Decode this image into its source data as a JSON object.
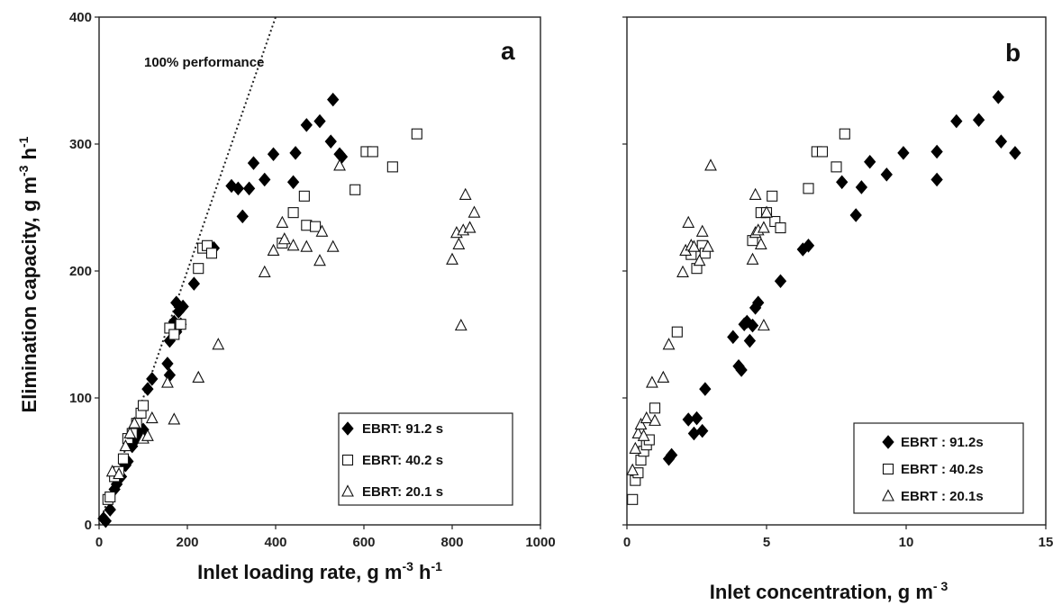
{
  "ylabel": "Elimination capacity, g m",
  "ylabel_sup1": "-3",
  "ylabel_mid": " h",
  "ylabel_sup2": "-1",
  "chart_data": [
    {
      "type": "scatter",
      "panel_letter": "a",
      "xlabel": "Inlet loading rate, g m",
      "xlabel_sup1": "-3",
      "xlabel_mid": " h",
      "xlabel_sup2": "-1",
      "xlim": [
        0,
        1000
      ],
      "ylim": [
        0,
        400
      ],
      "xticks": [
        "0",
        "200",
        "400",
        "600",
        "800",
        "1000"
      ],
      "xtick_values": [
        0,
        200,
        400,
        600,
        800,
        1000
      ],
      "yticks": [
        "0",
        "100",
        "200",
        "300",
        "400"
      ],
      "ytick_values": [
        0,
        100,
        200,
        300,
        400
      ],
      "annotation": "100% performance",
      "reference_line": {
        "x": [
          0,
          400
        ],
        "y": [
          0,
          400
        ]
      },
      "legend_position": "bottom-right",
      "series": [
        {
          "name": "EBRT: 91.2 s",
          "marker": "diamond-filled",
          "points": [
            [
              10,
              5
            ],
            [
              15,
              3
            ],
            [
              25,
              12
            ],
            [
              35,
              28
            ],
            [
              40,
              32
            ],
            [
              50,
              38
            ],
            [
              60,
              47
            ],
            [
              65,
              50
            ],
            [
              75,
              62
            ],
            [
              85,
              68
            ],
            [
              95,
              72
            ],
            [
              100,
              75
            ],
            [
              110,
              107
            ],
            [
              120,
              115
            ],
            [
              155,
              127
            ],
            [
              160,
              118
            ],
            [
              160,
              145
            ],
            [
              170,
              160
            ],
            [
              175,
              175
            ],
            [
              180,
              168
            ],
            [
              185,
              158
            ],
            [
              190,
              172
            ],
            [
              175,
              152
            ],
            [
              215,
              190
            ],
            [
              260,
              218
            ],
            [
              300,
              267
            ],
            [
              315,
              265
            ],
            [
              325,
              243
            ],
            [
              340,
              265
            ],
            [
              350,
              285
            ],
            [
              375,
              272
            ],
            [
              395,
              292
            ],
            [
              440,
              270
            ],
            [
              445,
              293
            ],
            [
              470,
              315
            ],
            [
              500,
              318
            ],
            [
              525,
              302
            ],
            [
              530,
              335
            ],
            [
              545,
              292
            ],
            [
              550,
              290
            ]
          ]
        },
        {
          "name": "EBRT: 40.2 s",
          "marker": "square-open",
          "points": [
            [
              20,
              20
            ],
            [
              25,
              22
            ],
            [
              35,
              38
            ],
            [
              45,
              42
            ],
            [
              55,
              52
            ],
            [
              65,
              68
            ],
            [
              75,
              72
            ],
            [
              85,
              80
            ],
            [
              95,
              88
            ],
            [
              100,
              94
            ],
            [
              160,
              155
            ],
            [
              170,
              150
            ],
            [
              185,
              158
            ],
            [
              225,
              202
            ],
            [
              235,
              218
            ],
            [
              245,
              220
            ],
            [
              255,
              214
            ],
            [
              415,
              222
            ],
            [
              440,
              246
            ],
            [
              465,
              259
            ],
            [
              470,
              236
            ],
            [
              490,
              235
            ],
            [
              580,
              264
            ],
            [
              605,
              294
            ],
            [
              620,
              294
            ],
            [
              665,
              282
            ],
            [
              720,
              308
            ]
          ]
        },
        {
          "name": "EBRT: 20.1 s",
          "marker": "triangle-open",
          "points": [
            [
              30,
              42
            ],
            [
              45,
              40
            ],
            [
              60,
              62
            ],
            [
              70,
              72
            ],
            [
              80,
              80
            ],
            [
              100,
              68
            ],
            [
              110,
              70
            ],
            [
              120,
              84
            ],
            [
              155,
              112
            ],
            [
              170,
              83
            ],
            [
              225,
              116
            ],
            [
              270,
              142
            ],
            [
              375,
              199
            ],
            [
              395,
              216
            ],
            [
              415,
              238
            ],
            [
              420,
              225
            ],
            [
              440,
              220
            ],
            [
              470,
              219
            ],
            [
              500,
              208
            ],
            [
              505,
              231
            ],
            [
              530,
              219
            ],
            [
              545,
              283
            ],
            [
              800,
              209
            ],
            [
              810,
              230
            ],
            [
              815,
              221
            ],
            [
              820,
              157
            ],
            [
              825,
              232
            ],
            [
              830,
              260
            ],
            [
              840,
              234
            ],
            [
              850,
              246
            ]
          ]
        }
      ]
    },
    {
      "type": "scatter",
      "panel_letter": "b",
      "xlabel": "Inlet concentration, g m",
      "xlabel_sup1": "- 3",
      "xlim": [
        0,
        15
      ],
      "ylim": [
        0,
        400
      ],
      "xticks": [
        "0",
        "5",
        "10",
        "15"
      ],
      "xtick_values": [
        0,
        5,
        10,
        15
      ],
      "legend_position": "bottom-right",
      "series": [
        {
          "name": "EBRT : 91.2s",
          "marker": "diamond-filled",
          "points": [
            [
              1.5,
              52
            ],
            [
              1.6,
              55
            ],
            [
              2.2,
              83
            ],
            [
              2.4,
              72
            ],
            [
              2.5,
              84
            ],
            [
              2.7,
              74
            ],
            [
              2.8,
              107
            ],
            [
              3.8,
              148
            ],
            [
              4.0,
              125
            ],
            [
              4.1,
              122
            ],
            [
              4.2,
              158
            ],
            [
              4.3,
              160
            ],
            [
              4.4,
              145
            ],
            [
              4.5,
              157
            ],
            [
              4.6,
              171
            ],
            [
              4.7,
              175
            ],
            [
              5.5,
              192
            ],
            [
              6.3,
              217
            ],
            [
              6.5,
              220
            ],
            [
              7.7,
              270
            ],
            [
              8.2,
              244
            ],
            [
              8.4,
              266
            ],
            [
              8.7,
              286
            ],
            [
              9.3,
              276
            ],
            [
              9.9,
              293
            ],
            [
              11.1,
              272
            ],
            [
              11.1,
              294
            ],
            [
              11.8,
              318
            ],
            [
              12.6,
              319
            ],
            [
              13.3,
              337
            ],
            [
              13.4,
              302
            ],
            [
              13.9,
              293
            ]
          ]
        },
        {
          "name": "EBRT : 40.2s",
          "marker": "square-open",
          "points": [
            [
              0.2,
              20
            ],
            [
              0.3,
              35
            ],
            [
              0.4,
              41
            ],
            [
              0.5,
              51
            ],
            [
              0.6,
              58
            ],
            [
              0.7,
              63
            ],
            [
              0.8,
              67
            ],
            [
              1.0,
              92
            ],
            [
              1.8,
              152
            ],
            [
              2.3,
              213
            ],
            [
              2.5,
              202
            ],
            [
              2.7,
              220
            ],
            [
              2.8,
              214
            ],
            [
              4.5,
              224
            ],
            [
              4.8,
              246
            ],
            [
              5.0,
              246
            ],
            [
              5.2,
              259
            ],
            [
              5.3,
              239
            ],
            [
              5.5,
              234
            ],
            [
              6.5,
              265
            ],
            [
              6.8,
              294
            ],
            [
              7.0,
              294
            ],
            [
              7.5,
              282
            ],
            [
              7.8,
              308
            ]
          ]
        },
        {
          "name": "EBRT : 20.1s",
          "marker": "triangle-open",
          "points": [
            [
              0.2,
              43
            ],
            [
              0.3,
              60
            ],
            [
              0.4,
              72
            ],
            [
              0.5,
              79
            ],
            [
              0.6,
              70
            ],
            [
              0.7,
              84
            ],
            [
              0.9,
              112
            ],
            [
              1.0,
              82
            ],
            [
              1.3,
              116
            ],
            [
              1.5,
              142
            ],
            [
              2.0,
              199
            ],
            [
              2.1,
              216
            ],
            [
              2.2,
              238
            ],
            [
              2.3,
              220
            ],
            [
              2.4,
              219
            ],
            [
              2.6,
              208
            ],
            [
              2.7,
              231
            ],
            [
              2.9,
              219
            ],
            [
              3.0,
              283
            ],
            [
              4.5,
              209
            ],
            [
              4.6,
              260
            ],
            [
              4.6,
              230
            ],
            [
              4.7,
              232
            ],
            [
              4.8,
              221
            ],
            [
              4.9,
              157
            ],
            [
              4.9,
              234
            ],
            [
              5.0,
              246
            ]
          ]
        }
      ]
    }
  ]
}
